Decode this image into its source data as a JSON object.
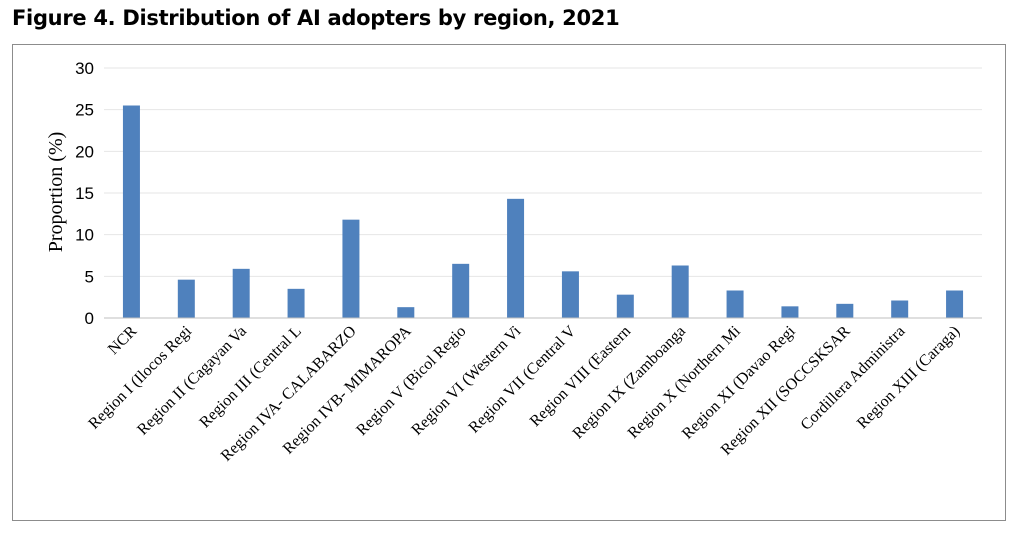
{
  "figure_title": "Figure 4. Distribution of AI adopters by region, 2021",
  "chart_data": {
    "type": "bar",
    "title": "",
    "xlabel": "",
    "ylabel": "Proportion (%)",
    "ylim": [
      0,
      30
    ],
    "yticks": [
      0,
      5,
      10,
      15,
      20,
      25,
      30
    ],
    "grid": true,
    "legend": "none",
    "bar_color": "#4f81bd",
    "grid_color": "#e6e6e6",
    "categories": [
      "NCR",
      "Region I (Ilocos Regi",
      "Region II (Cagayan Va",
      "Region III (Central L",
      "Region IVA- CALABARZO",
      "Region IVB- MIMAROPA",
      "Region V (Bicol Regio",
      "Region VI (Western Vi",
      "Region VII (Central V",
      "Region VIII (Eastern",
      "Region IX (Zamboanga",
      "Region X (Northern Mi",
      "Region XI (Davao Regi",
      "Region XII (SOCCSKSAR",
      "Cordillera Administra",
      "Region XIII (Caraga)"
    ],
    "values": [
      25.5,
      4.6,
      5.9,
      3.5,
      11.8,
      1.3,
      6.5,
      14.3,
      5.6,
      2.8,
      6.3,
      3.3,
      1.4,
      1.7,
      2.1,
      3.3
    ]
  }
}
